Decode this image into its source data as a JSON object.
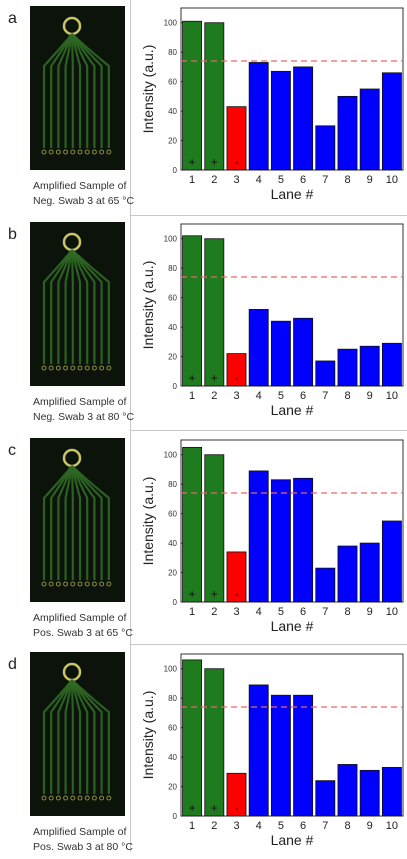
{
  "figure": {
    "panels": [
      {
        "letter": "a",
        "caption": [
          "Amplified Sample of",
          "Neg. Swab 3 at 65 °C"
        ],
        "photo": "microfluidic-chip-photo"
      },
      {
        "letter": "b",
        "caption": [
          "Amplified Sample of",
          "Neg. Swab 3 at 80 °C"
        ],
        "photo": "microfluidic-chip-photo"
      },
      {
        "letter": "c",
        "caption": [
          "Amplified Sample of",
          "Pos. Swab 3 at 65 °C"
        ],
        "photo": "microfluidic-chip-photo"
      },
      {
        "letter": "d",
        "caption": [
          "Amplified Sample of",
          "Pos. Swab 3 at 80 °C"
        ],
        "photo": "microfluidic-chip-photo"
      }
    ]
  },
  "chart_data": [
    {
      "type": "bar",
      "categories": [
        "1",
        "2",
        "3",
        "4",
        "5",
        "6",
        "7",
        "8",
        "9",
        "10"
      ],
      "values": [
        101,
        100,
        43,
        73,
        67,
        70,
        30,
        50,
        55,
        66
      ],
      "colors": [
        "#1e7b1e",
        "#1e7b1e",
        "#ff0000",
        "#0000ff",
        "#0000ff",
        "#0000ff",
        "#0000ff",
        "#0000ff",
        "#0000ff",
        "#0000ff"
      ],
      "markers": [
        "+",
        "+",
        "-",
        "",
        "",
        "",
        "",
        "",
        "",
        ""
      ],
      "threshold": 74,
      "threshold_color": "#ee6666",
      "xlabel": "Lane #",
      "ylabel": "Intensity (a.u.)",
      "ylim": [
        0,
        110
      ],
      "yticks": [
        0,
        20,
        40,
        60,
        80,
        100
      ]
    },
    {
      "type": "bar",
      "categories": [
        "1",
        "2",
        "3",
        "4",
        "5",
        "6",
        "7",
        "8",
        "9",
        "10"
      ],
      "values": [
        102,
        100,
        22,
        52,
        44,
        46,
        17,
        25,
        27,
        29
      ],
      "colors": [
        "#1e7b1e",
        "#1e7b1e",
        "#ff0000",
        "#0000ff",
        "#0000ff",
        "#0000ff",
        "#0000ff",
        "#0000ff",
        "#0000ff",
        "#0000ff"
      ],
      "markers": [
        "+",
        "+",
        "-",
        "",
        "",
        "",
        "",
        "",
        "",
        ""
      ],
      "threshold": 74,
      "threshold_color": "#ee6666",
      "xlabel": "Lane #",
      "ylabel": "Intensity (a.u.)",
      "ylim": [
        0,
        110
      ],
      "yticks": [
        0,
        20,
        40,
        60,
        80,
        100
      ]
    },
    {
      "type": "bar",
      "categories": [
        "1",
        "2",
        "3",
        "4",
        "5",
        "6",
        "7",
        "8",
        "9",
        "10"
      ],
      "values": [
        105,
        100,
        34,
        89,
        83,
        84,
        23,
        38,
        40,
        55
      ],
      "colors": [
        "#1e7b1e",
        "#1e7b1e",
        "#ff0000",
        "#0000ff",
        "#0000ff",
        "#0000ff",
        "#0000ff",
        "#0000ff",
        "#0000ff",
        "#0000ff"
      ],
      "markers": [
        "+",
        "+",
        "-",
        "",
        "",
        "",
        "",
        "",
        "",
        ""
      ],
      "threshold": 74,
      "threshold_color": "#ee6666",
      "xlabel": "Lane #",
      "ylabel": "Intensity (a.u.)",
      "ylim": [
        0,
        110
      ],
      "yticks": [
        0,
        20,
        40,
        60,
        80,
        100
      ]
    },
    {
      "type": "bar",
      "categories": [
        "1",
        "2",
        "3",
        "4",
        "5",
        "6",
        "7",
        "8",
        "9",
        "10"
      ],
      "values": [
        106,
        100,
        29,
        89,
        82,
        82,
        24,
        35,
        31,
        33
      ],
      "colors": [
        "#1e7b1e",
        "#1e7b1e",
        "#ff0000",
        "#0000ff",
        "#0000ff",
        "#0000ff",
        "#0000ff",
        "#0000ff",
        "#0000ff",
        "#0000ff"
      ],
      "markers": [
        "+",
        "+",
        "-",
        "",
        "",
        "",
        "",
        "",
        "",
        ""
      ],
      "threshold": 74,
      "threshold_color": "#ee6666",
      "xlabel": "Lane #",
      "ylabel": "Intensity (a.u.)",
      "ylim": [
        0,
        110
      ],
      "yticks": [
        0,
        20,
        40,
        60,
        80,
        100
      ]
    }
  ]
}
